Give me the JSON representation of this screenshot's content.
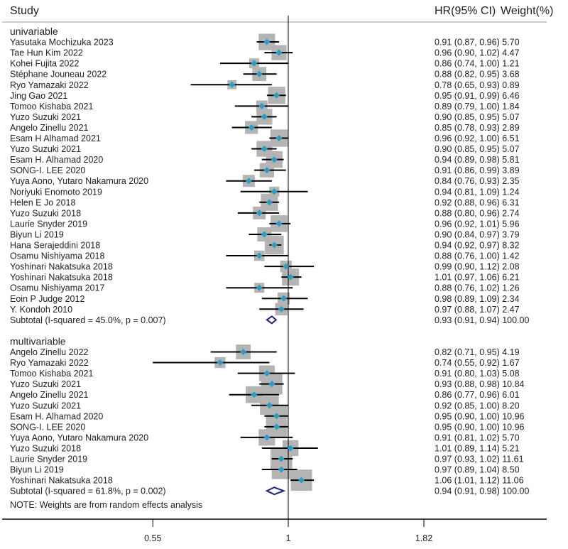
{
  "chart_data": {
    "type": "forest",
    "title": "",
    "header": {
      "study": "Study",
      "hr": "HR(95% CI)",
      "weight": "Weight(%)"
    },
    "xscale": "log",
    "xticks": [
      0.55,
      1,
      1.82
    ],
    "xtick_labels": [
      "0.55",
      "1",
      "1.82"
    ],
    "reference_line": 1,
    "colors": {
      "marker": "#2b9cc4",
      "box": "#b4b4b4",
      "diamond": "#1a237e",
      "line": "#000000"
    },
    "groups": [
      {
        "name": "univariable",
        "studies": [
          {
            "label": "Yasutaka Mochizuka 2023",
            "hr": 0.91,
            "lci": 0.87,
            "uci": 0.96,
            "weight": 5.7,
            "text": "0.91 (0.87, 0.96) 5.70"
          },
          {
            "label": "Tae Hun Kim 2022",
            "hr": 0.96,
            "lci": 0.9,
            "uci": 1.02,
            "weight": 4.47,
            "text": "0.96 (0.90, 1.02) 4.47"
          },
          {
            "label": "Kohei Fujita 2022",
            "hr": 0.86,
            "lci": 0.74,
            "uci": 1.0,
            "weight": 1.21,
            "text": "0.86 (0.74, 1.00) 1.21"
          },
          {
            "label": "Stéphane Jouneau 2022",
            "hr": 0.88,
            "lci": 0.82,
            "uci": 0.95,
            "weight": 3.68,
            "text": "0.88 (0.82, 0.95) 3.68"
          },
          {
            "label": "Ryo Yamazaki 2022",
            "hr": 0.78,
            "lci": 0.65,
            "uci": 0.93,
            "weight": 0.89,
            "text": "0.78 (0.65, 0.93) 0.89"
          },
          {
            "label": "Jing Gao 2021",
            "hr": 0.95,
            "lci": 0.91,
            "uci": 0.99,
            "weight": 6.46,
            "text": "0.95 (0.91, 0.99) 6.46"
          },
          {
            "label": "Tomoo Kishaba 2021",
            "hr": 0.89,
            "lci": 0.79,
            "uci": 1.0,
            "weight": 1.84,
            "text": "0.89 (0.79, 1.00) 1.84"
          },
          {
            "label": "Yuzo Suzuki 2021",
            "hr": 0.9,
            "lci": 0.85,
            "uci": 0.95,
            "weight": 5.07,
            "text": "0.90 (0.85, 0.95) 5.07"
          },
          {
            "label": "Angelo Zinellu 2021",
            "hr": 0.85,
            "lci": 0.78,
            "uci": 0.93,
            "weight": 2.89,
            "text": "0.85 (0.78, 0.93) 2.89"
          },
          {
            "label": "Esam H Alhamad 2021",
            "hr": 0.96,
            "lci": 0.92,
            "uci": 1.0,
            "weight": 6.51,
            "text": "0.96 (0.92, 1.00) 6.51"
          },
          {
            "label": "Yuzo Suzuki 2021",
            "hr": 0.9,
            "lci": 0.85,
            "uci": 0.95,
            "weight": 5.07,
            "text": "0.90 (0.85, 0.95) 5.07"
          },
          {
            "label": "Esam H. Alhamad 2020",
            "hr": 0.94,
            "lci": 0.89,
            "uci": 0.98,
            "weight": 5.81,
            "text": "0.94 (0.89, 0.98) 5.81"
          },
          {
            "label": "SONG-I. LEE 2020",
            "hr": 0.91,
            "lci": 0.86,
            "uci": 0.99,
            "weight": 3.89,
            "text": "0.91 (0.86, 0.99) 3.89"
          },
          {
            "label": "Yuya Aono, Yutaro Nakamura 2020",
            "hr": 0.84,
            "lci": 0.76,
            "uci": 0.93,
            "weight": 2.35,
            "text": "0.84 (0.76, 0.93) 2.35"
          },
          {
            "label": "Noriyuki Enomoto 2019",
            "hr": 0.94,
            "lci": 0.81,
            "uci": 1.09,
            "weight": 1.24,
            "text": "0.94 (0.81, 1.09) 1.24"
          },
          {
            "label": "Helen E Jo 2018",
            "hr": 0.92,
            "lci": 0.88,
            "uci": 0.96,
            "weight": 6.31,
            "text": "0.92 (0.88, 0.96) 6.31"
          },
          {
            "label": "Yuzo Suzuki 2018",
            "hr": 0.88,
            "lci": 0.8,
            "uci": 0.96,
            "weight": 2.74,
            "text": "0.88 (0.80, 0.96) 2.74"
          },
          {
            "label": "Laurie Snyder 2019",
            "hr": 0.96,
            "lci": 0.92,
            "uci": 1.01,
            "weight": 5.96,
            "text": "0.96 (0.92, 1.01) 5.96"
          },
          {
            "label": "Biyun Li 2019",
            "hr": 0.9,
            "lci": 0.84,
            "uci": 0.97,
            "weight": 3.79,
            "text": "0.90 (0.84, 0.97) 3.79"
          },
          {
            "label": "Hana Serajeddini 2018",
            "hr": 0.94,
            "lci": 0.92,
            "uci": 0.97,
            "weight": 8.32,
            "text": "0.94 (0.92, 0.97) 8.32"
          },
          {
            "label": "Osamu Nishiyama 2018",
            "hr": 0.88,
            "lci": 0.76,
            "uci": 1.0,
            "weight": 1.42,
            "text": "0.88 (0.76, 1.00) 1.42"
          },
          {
            "label": "Yoshinari Nakatsuka 2018",
            "hr": 0.99,
            "lci": 0.9,
            "uci": 1.12,
            "weight": 2.08,
            "text": "0.99 (0.90, 1.12) 2.08"
          },
          {
            "label": "Yoshinari Nakatsuka 2018",
            "hr": 1.01,
            "lci": 0.97,
            "uci": 1.06,
            "weight": 6.21,
            "text": "1.01 (0.97, 1.06) 6.21"
          },
          {
            "label": "Osamu Nishiyama  2017",
            "hr": 0.88,
            "lci": 0.76,
            "uci": 1.02,
            "weight": 1.26,
            "text": "0.88 (0.76, 1.02) 1.26"
          },
          {
            "label": "Eoin P Judge 2012",
            "hr": 0.98,
            "lci": 0.89,
            "uci": 1.09,
            "weight": 2.34,
            "text": "0.98 (0.89, 1.09) 2.34"
          },
          {
            "label": "Y. Kondoh 2010",
            "hr": 0.97,
            "lci": 0.88,
            "uci": 1.07,
            "weight": 2.47,
            "text": "0.97 (0.88, 1.07) 2.47"
          }
        ],
        "subtotal": {
          "label": "Subtotal  (I-squared = 45.0%, p = 0.007)",
          "hr": 0.93,
          "lci": 0.91,
          "uci": 0.94,
          "weight": 100.0,
          "text": "0.93 (0.91, 0.94) 100.00"
        }
      },
      {
        "name": "multivariable",
        "studies": [
          {
            "label": "Angelo Zinellu 2022",
            "hr": 0.82,
            "lci": 0.71,
            "uci": 0.95,
            "weight": 4.19,
            "text": "0.82 (0.71, 0.95) 4.19"
          },
          {
            "label": "Ryo Yamazaki 2022",
            "hr": 0.74,
            "lci": 0.55,
            "uci": 0.92,
            "weight": 1.67,
            "text": "0.74 (0.55, 0.92) 1.67"
          },
          {
            "label": "Tomoo Kishaba 2021",
            "hr": 0.91,
            "lci": 0.8,
            "uci": 1.03,
            "weight": 5.08,
            "text": "0.91 (0.80, 1.03) 5.08"
          },
          {
            "label": "Yuzo Suzuki 2021",
            "hr": 0.93,
            "lci": 0.88,
            "uci": 0.98,
            "weight": 10.84,
            "text": "0.93 (0.88, 0.98) 10.84"
          },
          {
            "label": "Angelo Zinellu 2021",
            "hr": 0.86,
            "lci": 0.77,
            "uci": 0.96,
            "weight": 6.01,
            "text": "0.86 (0.77, 0.96) 6.01"
          },
          {
            "label": "Yuzo Suzuki 2021",
            "hr": 0.92,
            "lci": 0.85,
            "uci": 1.0,
            "weight": 8.2,
            "text": "0.92 (0.85, 1.00) 8.20"
          },
          {
            "label": "Esam H. Alhamad 2020",
            "hr": 0.95,
            "lci": 0.9,
            "uci": 1.0,
            "weight": 10.96,
            "text": "0.95 (0.90, 1.00) 10.96"
          },
          {
            "label": "SONG-I. LEE 2020",
            "hr": 0.95,
            "lci": 0.9,
            "uci": 1.0,
            "weight": 10.96,
            "text": "0.95 (0.90, 1.00) 10.96"
          },
          {
            "label": "Yuya Aono, Yutaro Nakamura 2020",
            "hr": 0.91,
            "lci": 0.81,
            "uci": 1.02,
            "weight": 5.7,
            "text": "0.91 (0.81, 1.02) 5.70"
          },
          {
            "label": "Yuzo Suzuki 2018",
            "hr": 1.01,
            "lci": 0.89,
            "uci": 1.14,
            "weight": 5.21,
            "text": "1.01 (0.89, 1.14) 5.21"
          },
          {
            "label": "Laurie Snyder 2019",
            "hr": 0.97,
            "lci": 0.93,
            "uci": 1.02,
            "weight": 11.61,
            "text": "0.97 (0.93, 1.02) 11.61"
          },
          {
            "label": "Biyun Li 2019",
            "hr": 0.97,
            "lci": 0.89,
            "uci": 1.04,
            "weight": 8.5,
            "text": "0.97 (0.89, 1.04) 8.50"
          },
          {
            "label": "Yoshinari Nakatsuka 2018",
            "hr": 1.06,
            "lci": 1.01,
            "uci": 1.12,
            "weight": 11.06,
            "text": "1.06 (1.01, 1.12) 11.06"
          }
        ],
        "subtotal": {
          "label": "Subtotal  (I-squared = 61.8%, p = 0.002)",
          "hr": 0.94,
          "lci": 0.91,
          "uci": 0.98,
          "weight": 100.0,
          "text": "0.94 (0.91, 0.98) 100.00"
        }
      }
    ],
    "note": "NOTE: Weights are from random effects analysis"
  }
}
